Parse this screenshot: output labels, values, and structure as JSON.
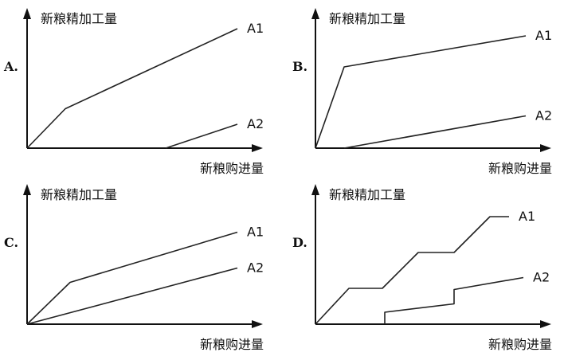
{
  "panels": [
    {
      "option": "A.",
      "y_axis_label": "新粮精加工量",
      "x_axis_label": "新粮购进量",
      "lines": [
        {
          "label": "A1",
          "points": [
            [
              0,
              0
            ],
            [
              0.16,
              0.33
            ],
            [
              0.88,
              1.0
            ]
          ]
        },
        {
          "label": "A2",
          "points": [
            [
              0.58,
              0
            ],
            [
              0.88,
              0.2
            ]
          ]
        }
      ]
    },
    {
      "option": "B.",
      "y_axis_label": "新粮精加工量",
      "x_axis_label": "新粮购进量",
      "lines": [
        {
          "label": "A1",
          "points": [
            [
              0,
              0
            ],
            [
              0.12,
              0.68
            ],
            [
              0.88,
              0.94
            ]
          ]
        },
        {
          "label": "A2",
          "points": [
            [
              0.12,
              0
            ],
            [
              0.88,
              0.27
            ]
          ]
        }
      ]
    },
    {
      "option": "C.",
      "y_axis_label": "新粮精加工量",
      "x_axis_label": "新粮购进量",
      "lines": [
        {
          "label": "A1",
          "points": [
            [
              0,
              0
            ],
            [
              0.18,
              0.35
            ],
            [
              0.88,
              0.77
            ]
          ]
        },
        {
          "label": "A2",
          "points": [
            [
              0,
              0
            ],
            [
              0.88,
              0.47
            ]
          ]
        }
      ]
    },
    {
      "option": "D.",
      "y_axis_label": "新粮精加工量",
      "x_axis_label": "新粮购进量",
      "lines": [
        {
          "label": "A1",
          "points": [
            [
              0,
              0
            ],
            [
              0.14,
              0.3
            ],
            [
              0.28,
              0.3
            ],
            [
              0.43,
              0.6
            ],
            [
              0.58,
              0.6
            ],
            [
              0.73,
              0.9
            ],
            [
              0.81,
              0.9
            ]
          ]
        },
        {
          "label": "A2",
          "points": [
            [
              0.29,
              0
            ],
            [
              0.29,
              0.1
            ],
            [
              0.58,
              0.17
            ],
            [
              0.58,
              0.29
            ],
            [
              0.87,
              0.39
            ]
          ]
        }
      ]
    }
  ]
}
